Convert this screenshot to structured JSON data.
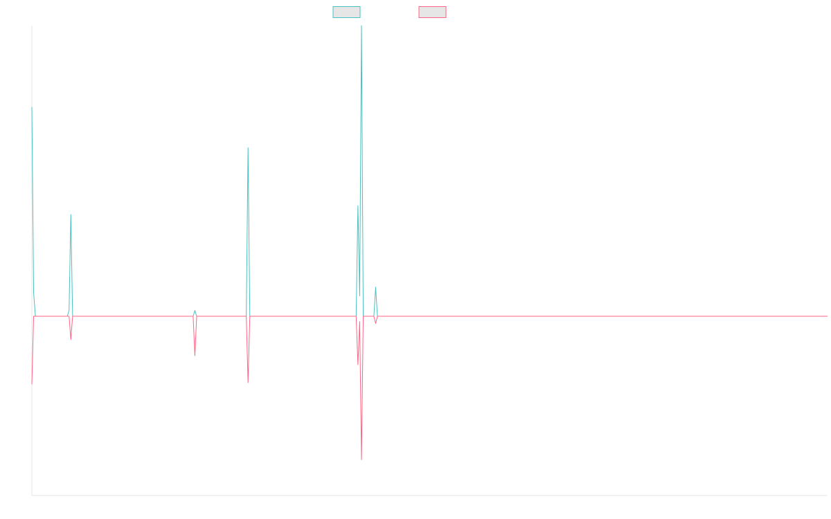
{
  "chart_data": {
    "type": "line",
    "title": "",
    "xlabel": "",
    "ylabel": "",
    "grid": false,
    "legend_position": "top-center",
    "x": [
      0,
      1,
      2,
      3,
      4,
      5,
      6,
      7,
      8,
      9,
      10,
      11,
      12,
      13,
      14,
      15,
      16,
      17,
      18,
      19,
      20,
      21,
      22,
      23,
      24,
      25,
      26,
      27,
      28,
      29,
      30,
      31,
      32,
      33,
      34,
      35,
      36,
      37,
      38,
      39,
      40,
      41,
      42,
      43,
      44,
      45,
      46,
      47,
      48,
      49,
      50,
      51,
      52,
      53,
      54,
      55,
      56,
      57,
      58,
      59,
      60,
      61,
      62,
      63,
      64,
      65,
      66,
      67,
      68,
      69,
      70,
      71,
      72,
      73,
      74,
      75,
      76,
      77,
      78,
      79,
      80,
      81,
      82,
      83,
      84,
      85,
      86,
      87,
      88,
      89,
      90,
      91,
      92,
      93,
      94,
      95,
      96,
      97,
      98,
      99,
      100,
      101,
      102,
      103,
      104,
      105,
      106,
      107,
      108,
      109,
      110,
      111,
      112,
      113,
      114,
      115,
      116,
      117,
      118,
      119,
      120,
      121,
      122,
      123,
      124,
      125,
      126,
      127,
      128,
      129,
      130,
      131,
      132,
      133,
      134,
      135,
      136,
      137,
      138,
      139,
      140,
      141,
      142,
      143,
      144,
      145,
      146,
      147,
      148,
      149,
      150,
      151,
      152,
      153,
      154,
      155,
      156,
      157,
      158,
      159,
      160,
      161,
      162,
      163,
      164,
      165,
      166,
      167,
      168,
      169,
      170,
      171,
      172,
      173,
      174,
      175,
      176,
      177,
      178,
      179,
      180,
      181,
      182,
      183,
      184,
      185,
      186,
      187,
      188,
      189,
      190,
      191,
      192,
      193,
      194,
      195,
      196,
      197,
      198,
      199,
      200,
      201,
      202,
      203,
      204,
      205,
      206,
      207,
      208,
      209,
      210,
      211,
      212,
      213,
      214,
      215,
      216,
      217,
      218,
      219,
      220,
      221,
      222,
      223,
      224,
      225,
      226,
      227,
      228,
      229,
      230,
      231,
      232,
      233,
      234,
      235,
      236,
      237,
      238,
      239,
      240,
      241,
      242,
      243,
      244,
      245,
      246,
      247,
      248,
      249,
      250,
      251,
      252,
      253,
      254,
      255,
      256,
      257,
      258,
      259,
      260,
      261,
      262,
      263,
      264,
      265,
      266,
      267,
      268,
      269,
      270,
      271,
      272,
      273,
      274,
      275,
      276,
      277,
      278,
      279,
      280,
      281,
      282,
      283,
      284,
      285,
      286,
      287,
      288,
      289,
      290,
      291,
      292,
      293,
      294,
      295,
      296,
      297,
      298,
      299,
      300,
      301,
      302,
      303,
      304,
      305,
      306,
      307,
      308,
      309,
      310,
      311,
      312,
      313,
      314,
      315,
      316,
      317,
      318,
      319,
      320,
      321,
      322,
      323,
      324,
      325,
      326,
      327,
      328,
      329,
      330,
      331,
      332,
      333,
      334,
      335,
      336,
      337,
      338,
      339,
      340,
      341,
      342,
      343,
      344,
      345,
      346,
      347,
      348,
      349,
      350,
      351,
      352,
      353,
      354,
      355,
      356,
      357,
      358,
      359,
      360,
      361,
      362,
      363,
      364,
      365,
      366,
      367,
      368,
      369,
      370,
      371,
      372,
      373,
      374,
      375,
      376,
      377,
      378,
      379,
      380,
      381,
      382,
      383,
      384,
      385,
      386,
      387,
      388,
      389,
      390,
      391,
      392,
      393,
      394,
      395,
      396,
      397,
      398,
      399,
      400,
      401,
      402,
      403,
      404,
      405,
      406,
      407,
      408,
      409,
      410,
      411,
      412,
      413,
      414,
      415,
      416,
      417,
      418,
      419,
      420,
      421,
      422,
      423,
      424,
      425,
      426,
      427,
      428,
      429,
      430,
      431,
      432,
      433,
      434,
      435,
      436,
      437,
      438,
      439,
      440,
      441,
      442,
      443,
      444,
      445,
      446,
      447,
      448,
      449
    ],
    "ylim": [
      -100,
      100
    ],
    "series": [
      {
        "name": "",
        "color": "#4bc0c0",
        "points": [
          [
            0,
            72
          ],
          [
            1,
            8
          ],
          [
            2,
            0
          ],
          [
            20,
            0
          ],
          [
            21,
            2
          ],
          [
            22,
            35
          ],
          [
            23,
            0
          ],
          [
            91,
            0
          ],
          [
            92,
            2
          ],
          [
            93,
            0
          ],
          [
            121,
            0
          ],
          [
            122,
            58
          ],
          [
            123,
            0
          ],
          [
            183,
            0
          ],
          [
            184,
            38
          ],
          [
            185,
            7
          ],
          [
            186,
            100
          ],
          [
            187,
            0
          ],
          [
            193,
            0
          ],
          [
            194,
            10
          ],
          [
            195,
            0
          ],
          [
            449,
            0
          ]
        ]
      },
      {
        "name": "",
        "color": "#ff6384",
        "points": [
          [
            0,
            -38
          ],
          [
            1,
            0
          ],
          [
            21,
            0
          ],
          [
            22,
            -13
          ],
          [
            23,
            0
          ],
          [
            91,
            0
          ],
          [
            92,
            -22
          ],
          [
            93,
            0
          ],
          [
            121,
            0
          ],
          [
            122,
            -37
          ],
          [
            123,
            0
          ],
          [
            183,
            0
          ],
          [
            184,
            -27
          ],
          [
            185,
            -3
          ],
          [
            186,
            -80
          ],
          [
            187,
            0
          ],
          [
            193,
            0
          ],
          [
            194,
            -4
          ],
          [
            195,
            0
          ],
          [
            449,
            0
          ]
        ]
      }
    ]
  }
}
